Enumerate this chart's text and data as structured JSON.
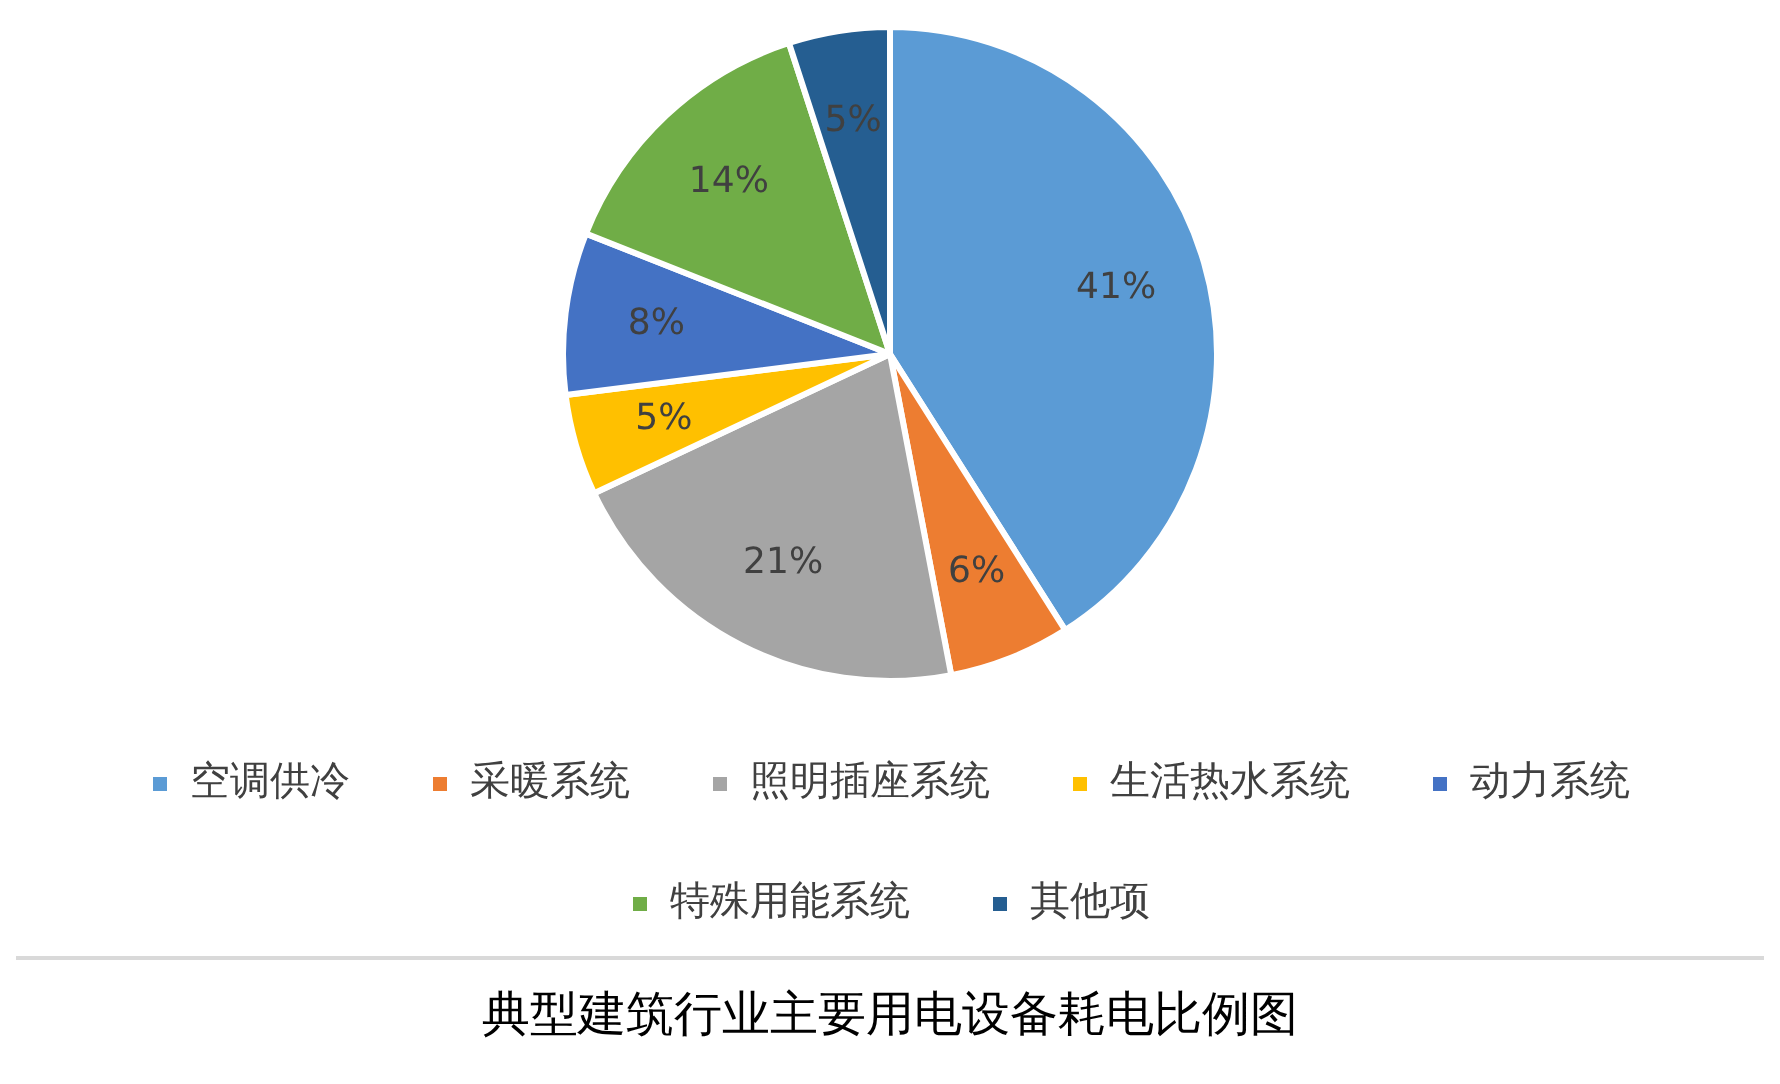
{
  "chart_data": {
    "type": "pie",
    "title": "典型建筑行业主要用电设备耗电比例图",
    "categories": [
      "空调供冷",
      "采暖系统",
      "照明插座系统",
      "生活热水系统",
      "动力系统",
      "特殊用能系统",
      "其他项"
    ],
    "values": [
      41,
      6,
      21,
      5,
      8,
      14,
      5
    ],
    "colors": [
      "#5b9bd5",
      "#ed7d31",
      "#a5a5a5",
      "#ffc000",
      "#4472c4",
      "#70ad47",
      "#255e91"
    ],
    "value_labels": [
      "41%",
      "6%",
      "21%",
      "5%",
      "8%",
      "14%",
      "5%"
    ],
    "legend": "bottom"
  }
}
